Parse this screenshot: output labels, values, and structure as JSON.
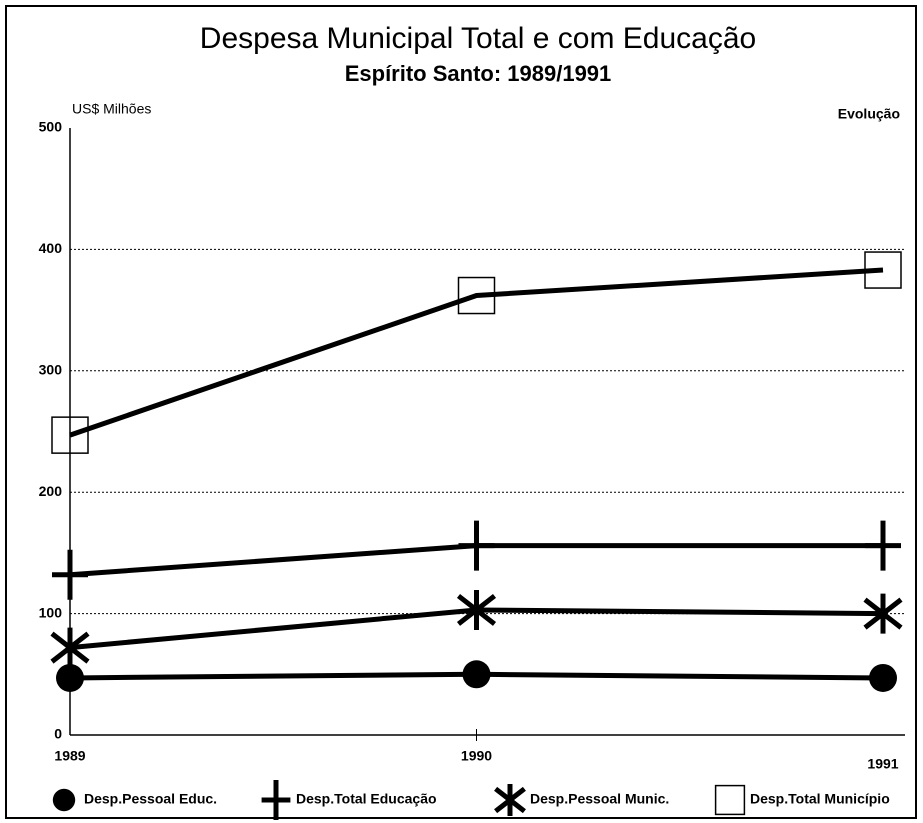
{
  "chart_data": {
    "type": "line",
    "title": "Despesa Municipal Total e com Educação",
    "subtitle": "Espírito Santo: 1989/1991",
    "y_label": "US$ Milhões",
    "annotation": "Evolução",
    "categories": [
      "1989",
      "1990",
      "1991"
    ],
    "series": [
      {
        "name": "Desp.Pessoal Educ.",
        "color": "#000000",
        "marker": "circle",
        "values": [
          47,
          50,
          47
        ]
      },
      {
        "name": "Desp.Total Educação",
        "color": "#000000",
        "marker": "plus",
        "values": [
          132,
          156,
          156
        ]
      },
      {
        "name": "Desp.Pessoal Munic.",
        "color": "#000000",
        "marker": "asterisk",
        "values": [
          72,
          103,
          100
        ]
      },
      {
        "name": "Desp.Total Município",
        "color": "#000000",
        "marker": "square",
        "values": [
          247,
          362,
          383
        ]
      }
    ],
    "ylim": [
      0,
      500
    ],
    "yticks": [
      0,
      100,
      200,
      300,
      400,
      500
    ],
    "grid": true,
    "legend": "bottom"
  }
}
